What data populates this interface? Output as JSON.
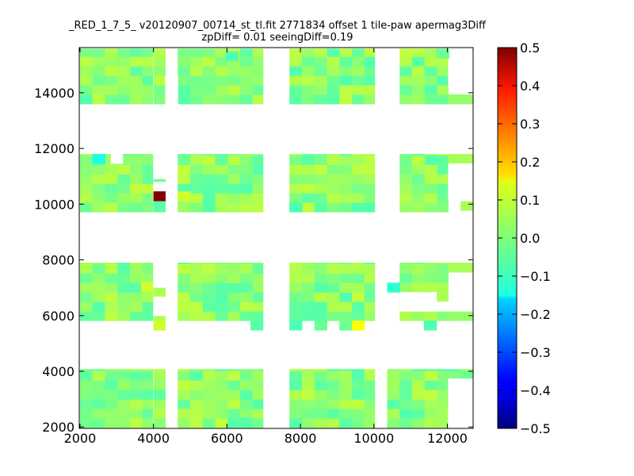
{
  "chart_data": {
    "type": "heatmap",
    "title": "_RED_1_7_5_ v20120907_00714_st_tl.fit 2771834 offset 1 tile-paw apermag3Diff",
    "subtitle": "zpDiff= 0.01 seeingDiff=0.19",
    "xlabel": "",
    "ylabel": "",
    "xlim": [
      1980,
      12700
    ],
    "ylim": [
      1950,
      15620
    ],
    "xticks": [
      2000,
      4000,
      6000,
      8000,
      10000,
      12000
    ],
    "yticks": [
      2000,
      4000,
      6000,
      8000,
      10000,
      12000,
      14000
    ],
    "colorbar": {
      "vmin": -0.5,
      "vmax": 0.5,
      "ticks": [
        "0.5",
        "0.4",
        "0.3",
        "0.2",
        "0.1",
        "0.0",
        "−0.1",
        "−0.2",
        "−0.3",
        "−0.4",
        "−0.5"
      ],
      "colormap": "jet"
    },
    "cell_size": 340,
    "blocks": [
      {
        "x": [
          2000,
          3980
        ],
        "y": [
          13600,
          15580
        ]
      },
      {
        "x": [
          4000,
          4320
        ],
        "y": [
          13600,
          15580
        ]
      },
      {
        "x": [
          4660,
          6980
        ],
        "y": [
          13600,
          15580
        ]
      },
      {
        "x": [
          7700,
          10020
        ],
        "y": [
          13600,
          15580
        ]
      },
      {
        "x": [
          10700,
          12020
        ],
        "y": [
          13600,
          15580
        ]
      },
      {
        "x": [
          2000,
          3980
        ],
        "y": [
          9720,
          11800
        ]
      },
      {
        "x": [
          4000,
          4320
        ],
        "y": [
          9720,
          10900
        ]
      },
      {
        "x": [
          4660,
          6980
        ],
        "y": [
          9720,
          11800
        ]
      },
      {
        "x": [
          7700,
          10020
        ],
        "y": [
          9720,
          11800
        ]
      },
      {
        "x": [
          10700,
          12020
        ],
        "y": [
          9720,
          11800
        ]
      },
      {
        "x": [
          2000,
          3980
        ],
        "y": [
          5820,
          7900
        ]
      },
      {
        "x": [
          4000,
          4320
        ],
        "y": [
          5820,
          7000
        ]
      },
      {
        "x": [
          4660,
          6980
        ],
        "y": [
          5820,
          7900
        ]
      },
      {
        "x": [
          7700,
          10020
        ],
        "y": [
          5820,
          7900
        ]
      },
      {
        "x": [
          10700,
          12020
        ],
        "y": [
          5820,
          7900
        ]
      },
      {
        "x": [
          2000,
          3980
        ],
        "y": [
          1980,
          4080
        ]
      },
      {
        "x": [
          4000,
          4320
        ],
        "y": [
          1980,
          4080
        ]
      },
      {
        "x": [
          4660,
          6980
        ],
        "y": [
          1980,
          4080
        ]
      },
      {
        "x": [
          7700,
          10020
        ],
        "y": [
          1980,
          4080
        ]
      },
      {
        "x": [
          10360,
          12020
        ],
        "y": [
          1980,
          4080
        ]
      },
      {
        "x": [
          12020,
          12700
        ],
        "y": [
          1980,
          4080
        ]
      }
    ],
    "extra_cells": [
      {
        "x": 12020,
        "y": 13600,
        "w": 680,
        "h": 340,
        "value": 0.02
      },
      {
        "x": 12020,
        "y": 11460,
        "w": 680,
        "h": 340,
        "value": 0.04
      },
      {
        "x": 12360,
        "y": 9780,
        "w": 340,
        "h": 340,
        "value": 0.04
      },
      {
        "x": 12020,
        "y": 7560,
        "w": 680,
        "h": 340,
        "value": 0.04
      },
      {
        "x": 12020,
        "y": 5820,
        "w": 680,
        "h": 340,
        "value": 0.02
      },
      {
        "x": 10360,
        "y": 6840,
        "w": 340,
        "h": 340,
        "value": -0.08
      },
      {
        "x": 4000,
        "y": 5480,
        "w": 320,
        "h": 340,
        "value": 0.08
      },
      {
        "x": 6640,
        "y": 5480,
        "w": 340,
        "h": 340,
        "value": -0.04
      },
      {
        "x": 7700,
        "y": 5480,
        "w": 340,
        "h": 340,
        "value": -0.05
      },
      {
        "x": 8380,
        "y": 5480,
        "w": 340,
        "h": 340,
        "value": -0.02
      },
      {
        "x": 9060,
        "y": 5480,
        "w": 340,
        "h": 340,
        "value": -0.02
      },
      {
        "x": 9400,
        "y": 5480,
        "w": 340,
        "h": 340,
        "value": 0.12
      },
      {
        "x": 11360,
        "y": 5480,
        "w": 340,
        "h": 340,
        "value": -0.05
      },
      {
        "x": 4000,
        "y": 9780,
        "w": 320,
        "h": 340,
        "value": -0.04
      }
    ],
    "holes": [
      {
        "x": 10700,
        "y": 6160,
        "w": 1000,
        "h": 680
      },
      {
        "x": 11360,
        "y": 6160,
        "w": 1340,
        "h": 340
      },
      {
        "x": 12360,
        "y": 6840,
        "w": 340,
        "h": 680
      },
      {
        "x": 12020,
        "y": 14280,
        "w": 680,
        "h": 1360
      },
      {
        "x": 12020,
        "y": 10120,
        "w": 680,
        "h": 1340
      },
      {
        "x": 12020,
        "y": 1980,
        "w": 680,
        "h": 1760
      },
      {
        "x": 2840,
        "y": 11460,
        "w": 320,
        "h": 340
      },
      {
        "x": 4000,
        "y": 6000,
        "w": 320,
        "h": 680
      },
      {
        "x": 4000,
        "y": 10120,
        "w": 320,
        "h": 680
      },
      {
        "x": 4320,
        "y": 13600,
        "w": 340,
        "h": 1020
      }
    ],
    "special_cells": [
      {
        "x": 4000,
        "y": 10120,
        "w": 320,
        "h": 340,
        "value": 0.5
      },
      {
        "x": 2340,
        "y": 11460,
        "w": 340,
        "h": 340,
        "value": -0.1
      },
      {
        "x": 3660,
        "y": 6860,
        "w": 320,
        "h": 340,
        "value": 0.08
      },
      {
        "x": 6300,
        "y": 2000,
        "w": 340,
        "h": 340,
        "value": -0.04
      },
      {
        "x": 5960,
        "y": 15140,
        "w": 340,
        "h": 340,
        "value": -0.05
      },
      {
        "x": 4660,
        "y": 10120,
        "w": 340,
        "h": 340,
        "value": 0.08
      },
      {
        "x": 11700,
        "y": 15240,
        "w": 340,
        "h": 340,
        "value": -0.02
      },
      {
        "x": 7700,
        "y": 9720,
        "w": 340,
        "h": 340,
        "value": -0.05
      }
    ]
  }
}
